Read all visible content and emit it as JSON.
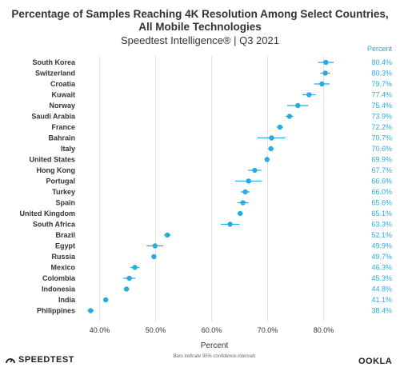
{
  "header": {
    "title_line1": "Percentage of Samples Reaching 4K Resolution Among Select Countries,",
    "title_line2": "All Mobile Technologies",
    "subtitle": "Speedtest Intelligence® | Q3 2021"
  },
  "footer": {
    "brand_left": "SPEEDTEST",
    "brand_right": "OOKLA"
  },
  "colors": {
    "point": "#29abe2",
    "value_text": "#29abe2",
    "grid": "#e3e3e3",
    "text": "#333333"
  },
  "chart_data": {
    "type": "scatter",
    "title": "Percentage of Samples Reaching 4K Resolution Among Select Countries, All Mobile Technologies",
    "subtitle": "Speedtest Intelligence® | Q3 2021",
    "xlabel": "Percent",
    "value_column_header": "Percent",
    "note": "Bars indicate 95% confidence intervals",
    "xlim": [
      36.5,
      84.5
    ],
    "xticks": [
      40,
      50,
      60,
      70,
      80
    ],
    "xtick_labels": [
      "40.0%",
      "50.0%",
      "60.0%",
      "70.0%",
      "80.0%"
    ],
    "grid": true,
    "categories": [
      "South Korea",
      "Switzerland",
      "Croatia",
      "Kuwait",
      "Norway",
      "Saudi Arabia",
      "France",
      "Bahrain",
      "Italy",
      "United States",
      "Hong Kong",
      "Portugal",
      "Turkey",
      "Spain",
      "United Kingdom",
      "South Africa",
      "Brazil",
      "Egypt",
      "Russia",
      "Mexico",
      "Colombia",
      "Indonesia",
      "India",
      "Philippines"
    ],
    "values": [
      80.4,
      80.3,
      79.7,
      77.4,
      75.4,
      73.9,
      72.2,
      70.7,
      70.6,
      69.9,
      67.7,
      66.6,
      66.0,
      65.6,
      65.1,
      63.3,
      52.1,
      49.9,
      49.7,
      46.3,
      45.3,
      44.8,
      41.1,
      38.4
    ],
    "value_labels": [
      "80.4%",
      "80.3%",
      "79.7%",
      "77.4%",
      "75.4%",
      "73.9%",
      "72.2%",
      "70.7%",
      "70.6%",
      "69.9%",
      "67.7%",
      "66.6%",
      "66.0%",
      "65.6%",
      "65.1%",
      "63.3%",
      "52.1%",
      "49.9%",
      "49.7%",
      "46.3%",
      "45.3%",
      "44.8%",
      "41.1%",
      "38.4%"
    ],
    "ci_low": [
      79.0,
      79.4,
      78.3,
      76.2,
      73.5,
      73.2,
      71.6,
      68.2,
      70.1,
      69.6,
      66.5,
      64.2,
      65.2,
      64.6,
      64.6,
      61.6,
      51.5,
      48.4,
      49.3,
      45.5,
      44.2,
      44.3,
      40.8,
      37.8
    ],
    "ci_high": [
      81.8,
      81.2,
      81.1,
      78.6,
      77.3,
      74.6,
      72.8,
      73.2,
      71.1,
      70.2,
      68.9,
      69.0,
      66.8,
      66.6,
      65.6,
      65.0,
      52.7,
      51.4,
      50.1,
      47.1,
      46.4,
      45.3,
      41.4,
      39.0
    ]
  }
}
